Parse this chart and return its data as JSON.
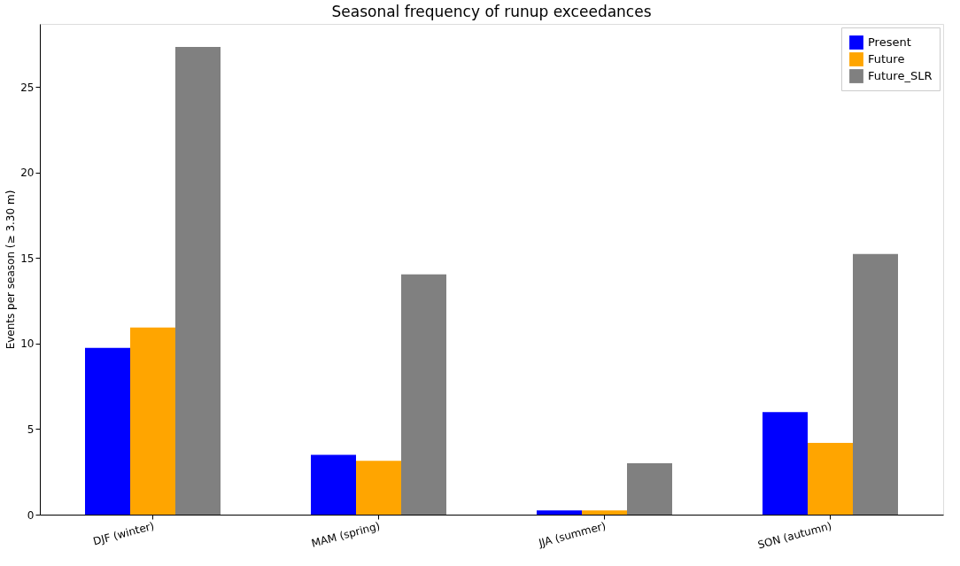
{
  "chart_data": {
    "type": "bar",
    "title": "Seasonal frequency of runup exceedances",
    "ylabel": "Events per season (≥ 3.30 m)",
    "categories": [
      "DJF (winter)",
      "MAM (spring)",
      "JJA (summer)",
      "SON (autumn)"
    ],
    "series": [
      {
        "name": "Present",
        "color": "#0000ff",
        "values": [
          9.75,
          3.5,
          0.25,
          6.0
        ]
      },
      {
        "name": "Future",
        "color": "#ffa500",
        "values": [
          10.95,
          3.15,
          0.25,
          4.2
        ]
      },
      {
        "name": "Future_SLR",
        "color": "#808080",
        "values": [
          27.35,
          14.05,
          3.0,
          15.25
        ]
      }
    ],
    "ylim": [
      0,
      28.7
    ],
    "yticks": [
      0,
      5,
      10,
      15,
      20,
      25
    ],
    "grid": false,
    "legend": "top right"
  }
}
